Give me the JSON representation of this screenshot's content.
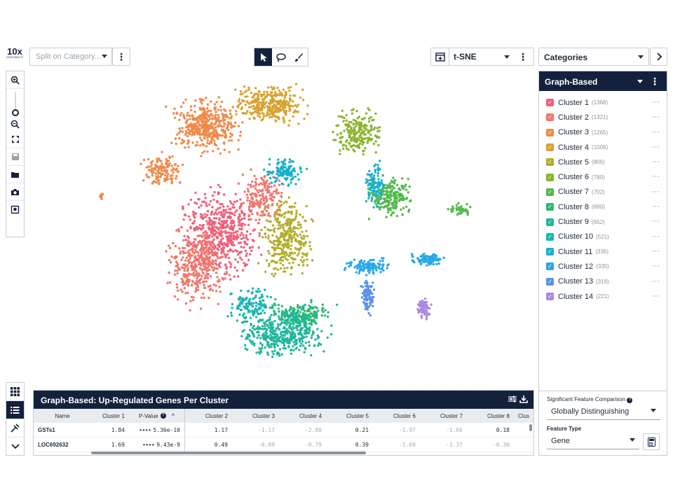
{
  "logo": {
    "big": "10x",
    "small": "GENOMICS"
  },
  "split_placeholder": "Split on Category...",
  "projection": {
    "label": "t-SNE"
  },
  "categories_label": "Categories",
  "panel": {
    "title": "Graph-Based",
    "clusters": [
      {
        "name": "Cluster 1",
        "count": "(1368)",
        "color": "#f0607a"
      },
      {
        "name": "Cluster 2",
        "count": "(1321)",
        "color": "#f0776d"
      },
      {
        "name": "Cluster 3",
        "count": "(1265)",
        "color": "#f08a4b"
      },
      {
        "name": "Cluster 4",
        "count": "(1006)",
        "color": "#d8a232"
      },
      {
        "name": "Cluster 5",
        "count": "(806)",
        "color": "#b3ad2b"
      },
      {
        "name": "Cluster 6",
        "count": "(780)",
        "color": "#8bb32f"
      },
      {
        "name": "Cluster 7",
        "count": "(702)",
        "color": "#52b84a"
      },
      {
        "name": "Cluster 8",
        "count": "(680)",
        "color": "#2db870"
      },
      {
        "name": "Cluster 9",
        "count": "(652)",
        "color": "#1fb79a"
      },
      {
        "name": "Cluster 10",
        "count": "(521)",
        "color": "#1ab5b5"
      },
      {
        "name": "Cluster 11",
        "count": "(336)",
        "color": "#1ab0cc"
      },
      {
        "name": "Cluster 12",
        "count": "(335)",
        "color": "#29a8e6"
      },
      {
        "name": "Cluster 13",
        "count": "(318)",
        "color": "#5b93e6"
      },
      {
        "name": "Cluster 14",
        "count": "(221)",
        "color": "#a98ae0"
      }
    ]
  },
  "comparison": {
    "title": "Significant Feature Comparison",
    "value": "Globally Distinguishing",
    "feature_type_label": "Feature Type",
    "feature_type_value": "Gene"
  },
  "table": {
    "title": "Graph-Based: Up-Regulated Genes Per Cluster",
    "headers": [
      "Name",
      "Cluster 1",
      "P-Value",
      "Cluster 2",
      "Cluster 3",
      "Cluster 4",
      "Cluster 5",
      "Cluster 6",
      "Cluster 7",
      "Cluster 8",
      "Clus"
    ],
    "rows": [
      {
        "name": "GSTs1",
        "c1": "1.84",
        "pval": "5.36e-10",
        "stars": "★★★★",
        "vals": [
          "1.17",
          "-1.17",
          "-2.80",
          "0.21",
          "-1.97",
          "-1.66",
          "0.18"
        ]
      },
      {
        "name": "LOC692632",
        "c1": "1.69",
        "pval": "9.43e-9",
        "stars": "★★★★",
        "vals": [
          "0.49",
          "-0.69",
          "-0.79",
          "0.39",
          "-1.09",
          "-1.37",
          "-0.30"
        ]
      }
    ]
  }
}
